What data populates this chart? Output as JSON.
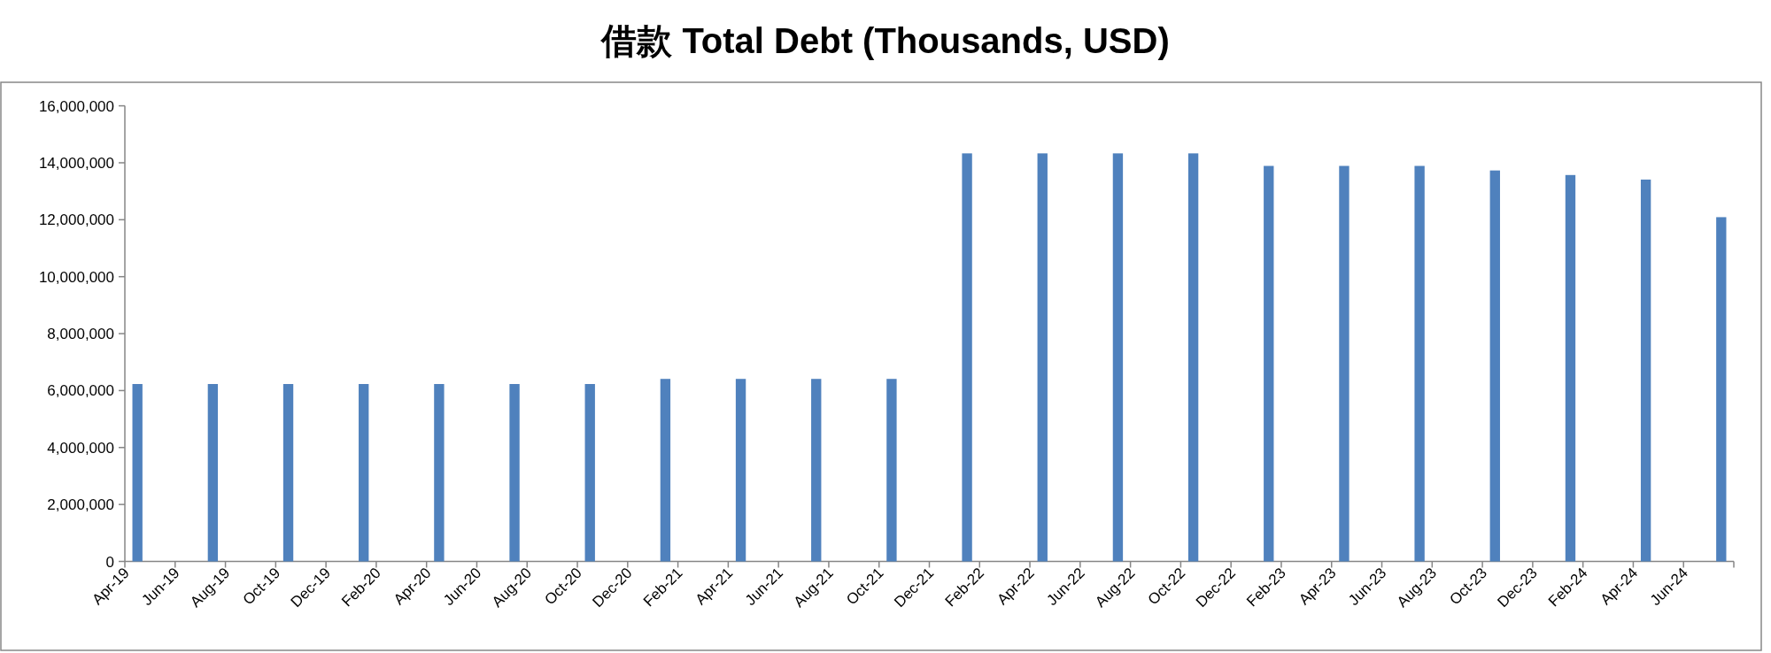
{
  "chart_data": {
    "type": "bar",
    "title": "借款 Total Debt (Thousands, USD)",
    "x": [
      "2019-04-16",
      "2019-07-16",
      "2019-10-16",
      "2020-01-16",
      "2020-04-16",
      "2020-07-16",
      "2020-10-16",
      "2021-01-16",
      "2021-04-16",
      "2021-07-16",
      "2021-10-16",
      "2022-01-16",
      "2022-04-16",
      "2022-07-16",
      "2022-10-16",
      "2023-01-16",
      "2023-04-16",
      "2023-07-16",
      "2023-10-16",
      "2024-01-16",
      "2024-04-16",
      "2024-07-16"
    ],
    "series": [
      {
        "color": "#4f81bd",
        "values": [
          6230000,
          6230000,
          6230000,
          6230000,
          6230000,
          6230000,
          6230000,
          6410000,
          6410000,
          6410000,
          6410000,
          14330000,
          14330000,
          14330000,
          14330000,
          13890000,
          13890000,
          13890000,
          13730000,
          13570000,
          13410000,
          12090000
        ]
      }
    ],
    "xlim": [
      "2019-04",
      "2024-08"
    ],
    "xticks": [
      {
        "value": "2019-04",
        "label": "Apr-19"
      },
      {
        "value": "2019-06",
        "label": "Jun-19"
      },
      {
        "value": "2019-08",
        "label": "Aug-19"
      },
      {
        "value": "2019-10",
        "label": "Oct-19"
      },
      {
        "value": "2019-12",
        "label": "Dec-19"
      },
      {
        "value": "2020-02",
        "label": "Feb-20"
      },
      {
        "value": "2020-04",
        "label": "Apr-20"
      },
      {
        "value": "2020-06",
        "label": "Jun-20"
      },
      {
        "value": "2020-08",
        "label": "Aug-20"
      },
      {
        "value": "2020-10",
        "label": "Oct-20"
      },
      {
        "value": "2020-12",
        "label": "Dec-20"
      },
      {
        "value": "2021-02",
        "label": "Feb-21"
      },
      {
        "value": "2021-04",
        "label": "Apr-21"
      },
      {
        "value": "2021-06",
        "label": "Jun-21"
      },
      {
        "value": "2021-08",
        "label": "Aug-21"
      },
      {
        "value": "2021-10",
        "label": "Oct-21"
      },
      {
        "value": "2021-12",
        "label": "Dec-21"
      },
      {
        "value": "2022-02",
        "label": "Feb-22"
      },
      {
        "value": "2022-04",
        "label": "Apr-22"
      },
      {
        "value": "2022-06",
        "label": "Jun-22"
      },
      {
        "value": "2022-08",
        "label": "Aug-22"
      },
      {
        "value": "2022-10",
        "label": "Oct-22"
      },
      {
        "value": "2022-12",
        "label": "Dec-22"
      },
      {
        "value": "2023-02",
        "label": "Feb-23"
      },
      {
        "value": "2023-04",
        "label": "Apr-23"
      },
      {
        "value": "2023-06",
        "label": "Jun-23"
      },
      {
        "value": "2023-08",
        "label": "Aug-23"
      },
      {
        "value": "2023-10",
        "label": "Oct-23"
      },
      {
        "value": "2023-12",
        "label": "Dec-23"
      },
      {
        "value": "2024-02",
        "label": "Feb-24"
      },
      {
        "value": "2024-04",
        "label": "Apr-24"
      },
      {
        "value": "2024-06",
        "label": "Jun-24"
      },
      {
        "value": "2024-08",
        "label": null
      }
    ],
    "ylim": [
      0,
      16000000
    ],
    "yticks": [
      {
        "value": 0,
        "label": "0"
      },
      {
        "value": 2000000,
        "label": "2,000,000"
      },
      {
        "value": 4000000,
        "label": "4,000,000"
      },
      {
        "value": 6000000,
        "label": "6,000,000"
      },
      {
        "value": 8000000,
        "label": "8,000,000"
      },
      {
        "value": 10000000,
        "label": "10,000,000"
      },
      {
        "value": 12000000,
        "label": "12,000,000"
      },
      {
        "value": 14000000,
        "label": "14,000,000"
      },
      {
        "value": 16000000,
        "label": "16,000,000"
      }
    ]
  }
}
